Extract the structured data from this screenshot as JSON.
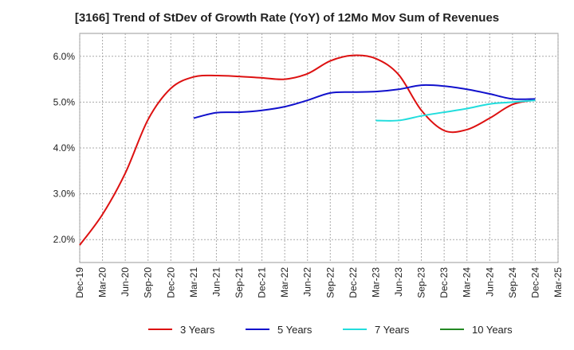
{
  "chart_data": {
    "type": "line",
    "title": "[3166]  Trend of StDev of Growth Rate (YoY) of 12Mo Mov Sum of Revenues",
    "xlabel": "",
    "ylabel": "",
    "ylim": [
      1.5,
      6.5
    ],
    "yticks": [
      2.0,
      3.0,
      4.0,
      5.0,
      6.0
    ],
    "ytick_labels": [
      "2.0%",
      "3.0%",
      "4.0%",
      "5.0%",
      "6.0%"
    ],
    "x_tick_labels": [
      "Dec-19",
      "Mar-20",
      "Jun-20",
      "Sep-20",
      "Dec-20",
      "Mar-21",
      "Jun-21",
      "Sep-21",
      "Dec-21",
      "Mar-22",
      "Jun-22",
      "Sep-22",
      "Dec-22",
      "Mar-23",
      "Jun-23",
      "Sep-23",
      "Dec-23",
      "Mar-24",
      "Jun-24",
      "Sep-24",
      "Dec-24",
      "Mar-25"
    ],
    "grid": true,
    "legend_position": "bottom",
    "series": [
      {
        "name": "3 Years",
        "color": "#dd1111",
        "x": [
          0,
          1,
          2,
          3,
          4,
          5,
          6,
          7,
          8,
          9,
          10,
          11,
          12,
          13,
          14,
          15,
          16,
          17,
          18,
          19,
          20
        ],
        "values": [
          1.88,
          2.55,
          3.45,
          4.62,
          5.3,
          5.55,
          5.58,
          5.56,
          5.53,
          5.5,
          5.62,
          5.9,
          6.02,
          5.95,
          5.6,
          4.82,
          4.38,
          4.4,
          4.65,
          4.95,
          5.05
        ]
      },
      {
        "name": "5 Years",
        "color": "#1111cc",
        "x": [
          5,
          6,
          7,
          8,
          9,
          10,
          11,
          12,
          13,
          14,
          15,
          16,
          17,
          18,
          19,
          20
        ],
        "values": [
          4.65,
          4.77,
          4.78,
          4.82,
          4.9,
          5.04,
          5.2,
          5.22,
          5.23,
          5.28,
          5.37,
          5.35,
          5.28,
          5.18,
          5.07,
          5.07
        ]
      },
      {
        "name": "7 Years",
        "color": "#22dddd",
        "x": [
          13,
          14,
          15,
          16,
          17,
          18,
          19,
          20
        ],
        "values": [
          4.6,
          4.6,
          4.7,
          4.78,
          4.86,
          4.96,
          5.0,
          5.04
        ]
      },
      {
        "name": "10 Years",
        "color": "#228822",
        "x": [],
        "values": []
      }
    ]
  }
}
